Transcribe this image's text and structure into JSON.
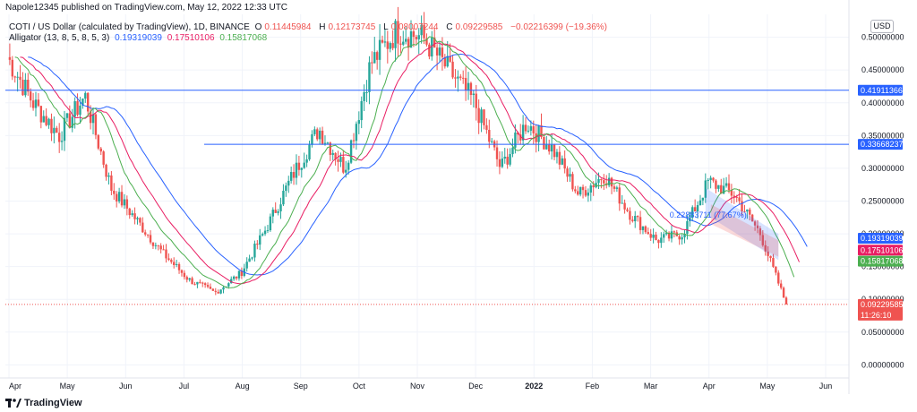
{
  "publisher": "Napole12345 published on TradingView.com, May 12, 2022 12:33 UTC",
  "header": {
    "symbol": "COTI / US Dollar (calculated by TradingView), 1D, BINANCE",
    "ohlc": {
      "o_label": "O",
      "o": "0.11445984",
      "h_label": "H",
      "h": "0.12173745",
      "l_label": "L",
      "l": "0.08007244",
      "c_label": "C",
      "c": "0.09229585",
      "change": "−0.02216399 (−19.36%)"
    },
    "indicator_name": "Alligator (13, 8, 5, 8, 5, 3)",
    "indicator_values": [
      "0.19319039",
      "0.17510106",
      "0.15817068"
    ]
  },
  "currency": "USD",
  "footer_brand": "TradingView",
  "colors": {
    "up": "#26a69a",
    "down": "#ef5350",
    "jaw": "#2962ff",
    "teeth": "#e91e63",
    "lips": "#4caf50",
    "hline": "#2962ff",
    "grid": "#f0f3fa",
    "axis_text": "#131722"
  },
  "chart_data": {
    "type": "candlestick",
    "title": "COTI / US Dollar (calculated by TradingView), 1D, BINANCE",
    "ylim": [
      -0.02,
      0.535
    ],
    "y_ticks": [
      0.0,
      0.05,
      0.1,
      0.15,
      0.2,
      0.25,
      0.3,
      0.35,
      0.4,
      0.45,
      0.5
    ],
    "y_tick_labels": [
      "0.00000000",
      "0.05000000",
      "0.10000000",
      "0.15000000",
      "0.20000000",
      "0.25000000",
      "0.30000000",
      "0.35000000",
      "0.40000000",
      "0.45000000",
      "0.50000000"
    ],
    "x_labels": [
      "Apr",
      "May",
      "Jun",
      "Jul",
      "Aug",
      "Sep",
      "Oct",
      "Nov",
      "Dec",
      "2022",
      "Feb",
      "Mar",
      "Apr",
      "May",
      "Jun"
    ],
    "x_bold_label": "2022",
    "price_series": [
      [
        "Apr",
        0.47
      ],
      [
        "Apr",
        0.4
      ],
      [
        "May",
        0.35
      ],
      [
        "May",
        0.41
      ],
      [
        "Jun",
        0.27
      ],
      [
        "Jun",
        0.22
      ],
      [
        "Jun",
        0.17
      ],
      [
        "Jul",
        0.13
      ],
      [
        "Jul",
        0.11
      ],
      [
        "Aug",
        0.14
      ],
      [
        "Aug",
        0.21
      ],
      [
        "Aug",
        0.29
      ],
      [
        "Sep",
        0.36
      ],
      [
        "Sep",
        0.3
      ],
      [
        "Oct",
        0.46
      ],
      [
        "Oct",
        0.51
      ],
      [
        "Nov",
        0.5
      ],
      [
        "Nov",
        0.45
      ],
      [
        "Dec",
        0.4
      ],
      [
        "Dec",
        0.3
      ],
      [
        "2022",
        0.37
      ],
      [
        "2022",
        0.33
      ],
      [
        "Feb",
        0.26
      ],
      [
        "Feb",
        0.29
      ],
      [
        "Feb",
        0.23
      ],
      [
        "Mar",
        0.19
      ],
      [
        "Mar",
        0.2
      ],
      [
        "Apr",
        0.28
      ],
      [
        "Apr",
        0.26
      ],
      [
        "May",
        0.2
      ],
      [
        "May",
        0.0923
      ]
    ],
    "horizontal_levels": [
      {
        "value": 0.41911366,
        "label": "0.41911366"
      },
      {
        "value": 0.33668237,
        "label": "0.33668237"
      }
    ],
    "indicator_labels": [
      {
        "value": 0.19319039,
        "label": "0.19319039",
        "color": "#2962ff"
      },
      {
        "value": 0.17510106,
        "label": "0.17510106",
        "color": "#e91e63"
      },
      {
        "value": 0.15817068,
        "label": "0.15817068",
        "color": "#4caf50"
      }
    ],
    "last_price": {
      "value": 0.09229585,
      "label": "0.09229585",
      "countdown": "11:26:10"
    },
    "channel_annotation": {
      "text": "0.22883711 (77.67%)"
    }
  }
}
